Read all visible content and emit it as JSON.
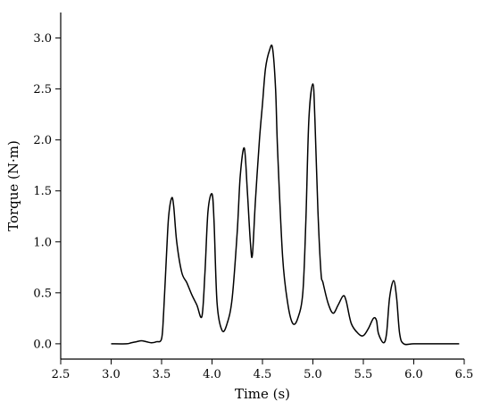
{
  "chart_data": {
    "type": "line",
    "title": "",
    "xlabel": "Time (s)",
    "ylabel": "Torque (N·m)",
    "xlim": [
      2.5,
      6.5
    ],
    "ylim": [
      -0.15,
      3.25
    ],
    "xticks": [
      2.5,
      3.0,
      3.5,
      4.0,
      4.5,
      5.0,
      5.5,
      6.0,
      6.5
    ],
    "xtick_labels": [
      "2.5",
      "3.0",
      "3.5",
      "4.0",
      "4.5",
      "5.0",
      "5.5",
      "6.0",
      "6.5"
    ],
    "yticks": [
      0.0,
      0.5,
      1.0,
      1.5,
      2.0,
      2.5,
      3.0
    ],
    "ytick_labels": [
      "0.0",
      "0.5",
      "1.0",
      "1.5",
      "2.0",
      "2.5",
      "3.0"
    ],
    "grid": false,
    "series": [
      {
        "x": [
          3.0,
          3.15,
          3.2,
          3.25,
          3.3,
          3.35,
          3.4,
          3.45,
          3.5,
          3.52,
          3.55,
          3.57,
          3.6,
          3.62,
          3.65,
          3.7,
          3.75,
          3.8,
          3.85,
          3.9,
          3.93,
          3.96,
          4.0,
          4.02,
          4.05,
          4.1,
          4.15,
          4.2,
          4.25,
          4.28,
          4.32,
          4.35,
          4.38,
          4.4,
          4.43,
          4.47,
          4.5,
          4.53,
          4.57,
          4.6,
          4.63,
          4.65,
          4.7,
          4.75,
          4.8,
          4.85,
          4.9,
          4.93,
          4.96,
          5.0,
          5.02,
          5.05,
          5.08,
          5.1,
          5.15,
          5.2,
          5.25,
          5.3,
          5.33,
          5.38,
          5.45,
          5.5,
          5.55,
          5.6,
          5.63,
          5.65,
          5.7,
          5.73,
          5.76,
          5.8,
          5.83,
          5.86,
          5.9,
          6.0,
          6.2,
          6.45
        ],
        "y": [
          0.0,
          0.0,
          0.01,
          0.02,
          0.03,
          0.02,
          0.01,
          0.02,
          0.05,
          0.3,
          0.9,
          1.25,
          1.43,
          1.35,
          1.0,
          0.7,
          0.6,
          0.48,
          0.38,
          0.27,
          0.7,
          1.3,
          1.47,
          1.2,
          0.4,
          0.13,
          0.2,
          0.45,
          1.1,
          1.65,
          1.92,
          1.5,
          1.0,
          0.87,
          1.4,
          2.0,
          2.35,
          2.7,
          2.88,
          2.9,
          2.5,
          1.9,
          0.85,
          0.4,
          0.2,
          0.25,
          0.5,
          1.2,
          2.2,
          2.55,
          2.2,
          1.3,
          0.7,
          0.6,
          0.4,
          0.3,
          0.38,
          0.47,
          0.42,
          0.2,
          0.1,
          0.08,
          0.15,
          0.25,
          0.23,
          0.1,
          0.01,
          0.1,
          0.45,
          0.62,
          0.45,
          0.1,
          0.0,
          0.0,
          0.0,
          0.0
        ]
      }
    ]
  }
}
